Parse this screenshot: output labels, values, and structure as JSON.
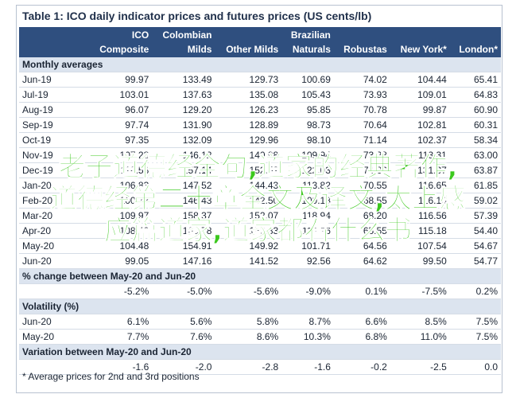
{
  "title": "Table 1: ICO daily indicator prices and futures prices (US cents/lb)",
  "columns": [
    {
      "lines": [
        "ICO",
        "Composite"
      ]
    },
    {
      "lines": [
        "Colombian",
        "Milds"
      ]
    },
    {
      "lines": [
        "Other Milds"
      ]
    },
    {
      "lines": [
        "Brazilian",
        "Naturals"
      ]
    },
    {
      "lines": [
        "Robustas"
      ]
    },
    {
      "lines": [
        "New York*"
      ]
    },
    {
      "lines": [
        "London*"
      ]
    }
  ],
  "sections": [
    {
      "label": "Monthly averages",
      "rows": [
        {
          "label": "Jun-19",
          "values": [
            "99.97",
            "133.49",
            "129.73",
            "100.69",
            "74.02",
            "104.44",
            "65.41"
          ]
        },
        {
          "label": "Jul-19",
          "values": [
            "103.01",
            "137.63",
            "135.08",
            "105.43",
            "73.93",
            "109.01",
            "64.83"
          ]
        },
        {
          "label": "Aug-19",
          "values": [
            "96.07",
            "129.20",
            "126.23",
            "95.85",
            "70.78",
            "99.87",
            "60.90"
          ]
        },
        {
          "label": "Sep-19",
          "values": [
            "97.74",
            "131.90",
            "128.89",
            "98.73",
            "70.64",
            "102.81",
            "60.31"
          ]
        },
        {
          "label": "Oct-19",
          "values": [
            "97.35",
            "132.09",
            "129.96",
            "98.10",
            "71.14",
            "102.37",
            "58.34"
          ]
        },
        {
          "label": "Nov-19",
          "values": [
            "107.23",
            "146.12",
            "140.98",
            "109.94",
            "73.28",
            "113.31",
            "63.00"
          ]
        },
        {
          "label": "Dec-19",
          "values": [
            "118.58",
            "157.14",
            "152.52",
            "122.03",
            "74.86",
            "131.37",
            "63.87"
          ]
        },
        {
          "label": "Jan-20",
          "values": [
            "106.83",
            "147.52",
            "144.43",
            "113.82",
            "70.55",
            "116.65",
            "61.85"
          ]
        },
        {
          "label": "Feb-20",
          "values": [
            "100.73",
            "146.43",
            "142.50",
            "109.18",
            "68.55",
            "116.10",
            "59.02"
          ]
        },
        {
          "label": "Mar-20",
          "values": [
            "109.97",
            "158.37",
            "152.07",
            "118.94",
            "68.20",
            "116.56",
            "57.39"
          ]
        },
        {
          "label": "Apr-20",
          "values": [
            "108.48",
            "163.78",
            "153.83",
            "114.26",
            "65.55",
            "115.18",
            "54.40"
          ]
        },
        {
          "label": "May-20",
          "values": [
            "104.48",
            "154.91",
            "149.92",
            "101.71",
            "64.56",
            "107.54",
            "54.67"
          ]
        },
        {
          "label": "Jun-20",
          "values": [
            "99.05",
            "147.16",
            "141.52",
            "92.56",
            "64.62",
            "99.50",
            "54.77"
          ]
        }
      ]
    },
    {
      "label": "% change between May-20 and Jun-20",
      "rows": [
        {
          "values": [
            "-5.2%",
            "-5.0%",
            "-5.6%",
            "-9.0%",
            "0.1%",
            "-7.5%",
            "0.2%"
          ]
        }
      ]
    },
    {
      "label": "Volatility (%)",
      "rows": [
        {
          "label": "Jun-20",
          "values": [
            "6.1%",
            "5.6%",
            "5.8%",
            "8.7%",
            "6.6%",
            "8.5%",
            "7.5%"
          ]
        },
        {
          "label": "May-20",
          "values": [
            "7.7%",
            "7.6%",
            "8.6%",
            "10.3%",
            "6.8%",
            "11.0%",
            "7.5%"
          ]
        }
      ]
    },
    {
      "label": "Variation between May-20 and Jun-20",
      "rows": [
        {
          "values": [
            "-1.6",
            "-2.0",
            "-2.8",
            "-1.6",
            "-0.2",
            "-2.5",
            "0.0"
          ]
        }
      ]
    }
  ],
  "footnote": "* Average prices for 2nd and 3rd positions",
  "overlay": {
    "lines": [
      "老子道德经全句,道家的经典著作,",
      "道德经第二十章全文及译文,太上感",
      "应篇道家,道家都看什么书"
    ]
  }
}
